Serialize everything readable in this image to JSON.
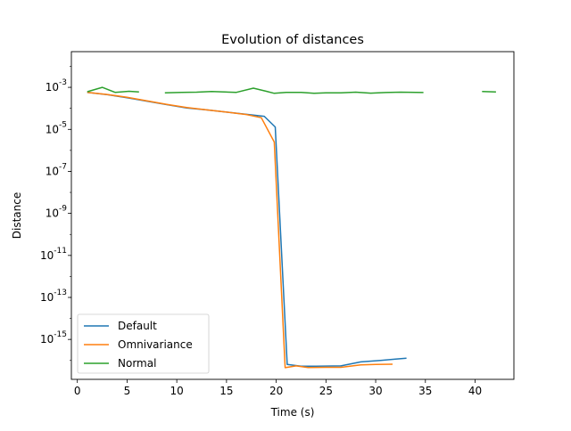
{
  "chart_data": {
    "type": "line",
    "title": "Evolution of distances",
    "xlabel": "Time (s)",
    "ylabel": "Distance",
    "xlim": [
      -0.6,
      43.9
    ],
    "xticks": [
      0,
      5,
      10,
      15,
      20,
      25,
      30,
      35,
      40
    ],
    "ylim_log10": [
      -16.9,
      -1.3
    ],
    "yscale": "log",
    "yticks_log10": [
      -3,
      -5,
      -7,
      -9,
      -11,
      -13,
      -15
    ],
    "ytick_labels": [
      "10^-3",
      "10^-5",
      "10^-7",
      "10^-9",
      "10^-11",
      "10^-13",
      "10^-15"
    ],
    "grid": false,
    "legend_position": "lower-left",
    "series": [
      {
        "name": "Default",
        "color": "#1f77b4",
        "segments": [
          [
            [
              1,
              0.00058
            ],
            [
              3,
              0.00045
            ],
            [
              5,
              0.00032
            ],
            [
              7,
              0.00022
            ],
            [
              9,
              0.00015
            ],
            [
              11,
              0.000105
            ],
            [
              13,
              8.5e-05
            ],
            [
              15,
              6.6e-05
            ],
            [
              17,
              5.2e-05
            ],
            [
              18.8,
              4.2e-05
            ],
            [
              19.9,
              1.3e-05
            ],
            [
              21.1,
              6.5e-17
            ],
            [
              22.5,
              5.3e-17
            ],
            [
              24,
              5.3e-17
            ],
            [
              26.5,
              5.5e-17
            ],
            [
              28.5,
              8.5e-17
            ],
            [
              30.5,
              1e-16
            ],
            [
              32,
              1.15e-16
            ],
            [
              33.1,
              1.28e-16
            ]
          ]
        ]
      },
      {
        "name": "Omnivariance",
        "color": "#ff7f0e",
        "segments": [
          [
            [
              1,
              0.00058
            ],
            [
              3,
              0.00046
            ],
            [
              5,
              0.00034
            ],
            [
              7,
              0.00023
            ],
            [
              9,
              0.000155
            ],
            [
              11,
              0.00011
            ],
            [
              13,
              8.5e-05
            ],
            [
              15,
              6.6e-05
            ],
            [
              17,
              5.1e-05
            ],
            [
              18.5,
              3.6e-05
            ],
            [
              19.8,
              2.5e-06
            ],
            [
              20.9,
              4.5e-17
            ],
            [
              22,
              5.5e-17
            ],
            [
              23.2,
              4.6e-17
            ],
            [
              25,
              4.7e-17
            ],
            [
              26.5,
              4.7e-17
            ],
            [
              28.5,
              6.2e-17
            ],
            [
              30,
              6.5e-17
            ],
            [
              31.7,
              6.6e-17
            ]
          ]
        ]
      },
      {
        "name": "Normal",
        "color": "#2ca02c",
        "segments": [
          [
            [
              1,
              0.00062
            ],
            [
              2.5,
              0.001
            ],
            [
              3.8,
              0.00058
            ],
            [
              5.2,
              0.00065
            ],
            [
              6.2,
              0.00061
            ]
          ],
          [
            [
              8.8,
              0.00055
            ],
            [
              10.5,
              0.00058
            ],
            [
              12,
              0.00059
            ],
            [
              13.5,
              0.00063
            ],
            [
              16,
              0.00058
            ],
            [
              17.7,
              0.00092
            ],
            [
              19,
              0.00065
            ],
            [
              19.8,
              0.00052
            ],
            [
              21,
              0.00058
            ],
            [
              22.5,
              0.00058
            ],
            [
              23.8,
              0.00052
            ],
            [
              25,
              0.00055
            ],
            [
              26.5,
              0.00055
            ],
            [
              28,
              0.00059
            ],
            [
              29.5,
              0.00053
            ],
            [
              31,
              0.00057
            ],
            [
              32.5,
              0.00059
            ],
            [
              34.8,
              0.00057
            ]
          ],
          [
            [
              40.7,
              0.00063
            ],
            [
              42.1,
              0.00061
            ]
          ]
        ]
      }
    ]
  }
}
